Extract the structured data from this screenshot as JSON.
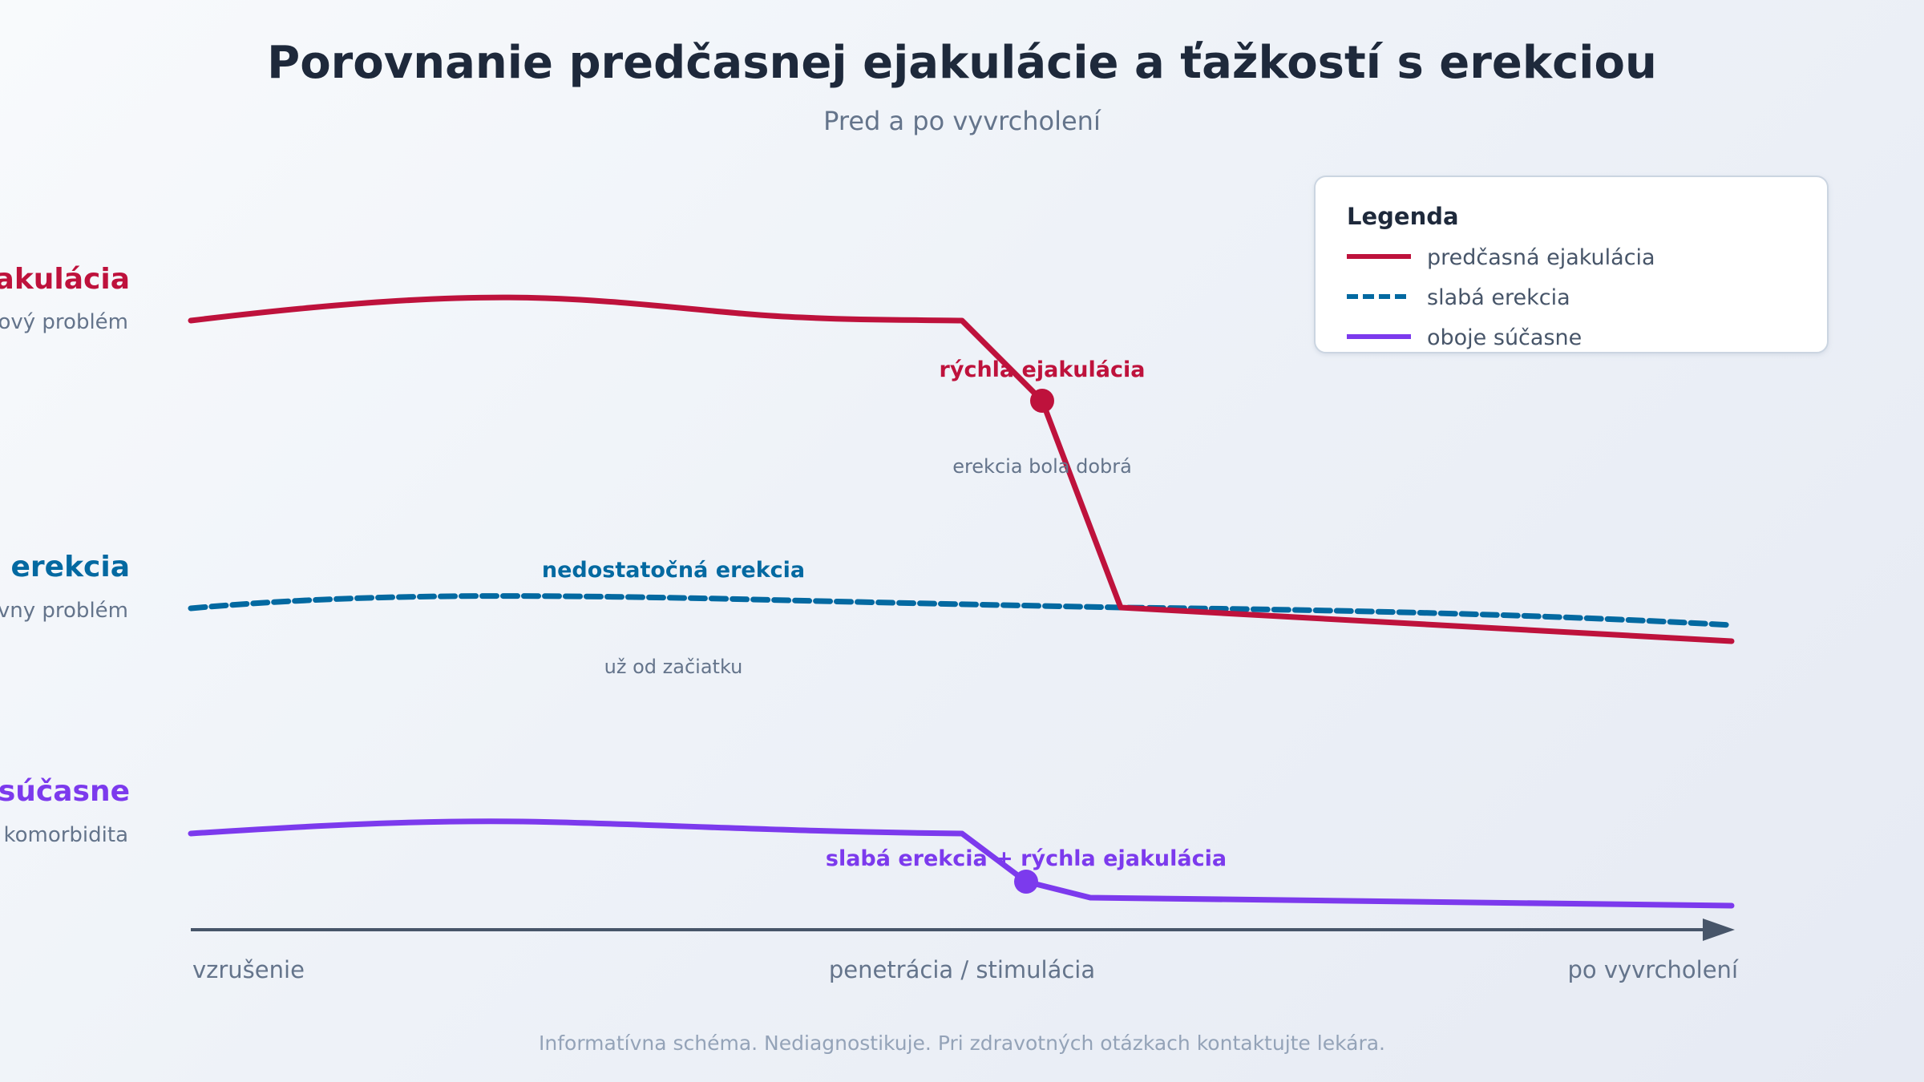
{
  "title": "Porovnanie predčasnej ejakulácie a ťažkostí s erekciou",
  "subtitle": "Pred a po vyvrcholení",
  "colors": {
    "pe": "#be123c",
    "ed": "#0369a1",
    "both": "#7c3aed",
    "axis": "#475569",
    "title": "#1e293b",
    "muted": "#64748b",
    "footer": "#94a3b8"
  },
  "rows": [
    {
      "key": "pe",
      "label": "akulácia",
      "sublabel": "ový problém"
    },
    {
      "key": "ed",
      "label": "erekcia",
      "sublabel": "vny problém"
    },
    {
      "key": "both",
      "label": "súčasne",
      "sublabel": "komorbidita"
    }
  ],
  "annotations": {
    "pe_main": "rýchla ejakulácia",
    "pe_sub": "erekcia bola dobrá",
    "ed_main": "nedostatočná erekcia",
    "ed_sub": "už od začiatku",
    "both_main": "slabá erekcia + rýchla ejakulácia"
  },
  "legend": {
    "title": "Legenda",
    "items": [
      {
        "key": "pe",
        "label": "predčasná ejakulácia",
        "style": "solid"
      },
      {
        "key": "ed",
        "label": "slabá erekcia",
        "style": "dashed"
      },
      {
        "key": "both",
        "label": "oboje súčasne",
        "style": "solid"
      }
    ]
  },
  "axis": {
    "start": "vzrušenie",
    "middle": "penetrácia / stimulácia",
    "end": "po vyvrcholení"
  },
  "footer": "Informatívna schéma. Nediagnostikuje. Pri zdravotných otázkach kontaktujte lekára."
}
